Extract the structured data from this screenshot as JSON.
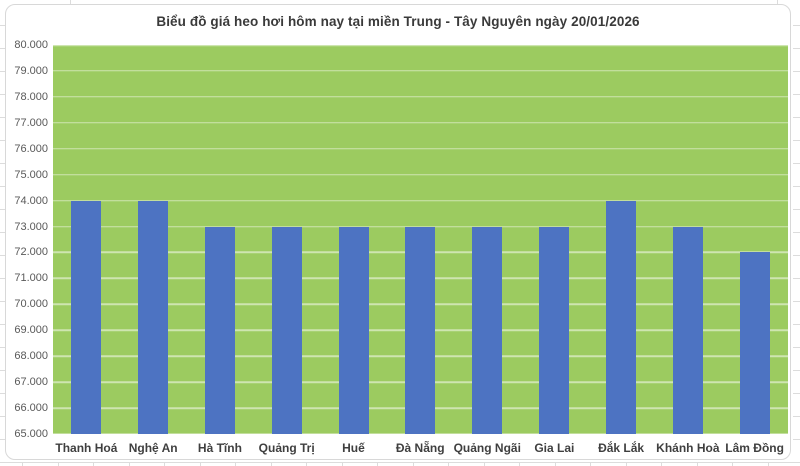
{
  "chart": {
    "title": "Biểu đồ giá heo hơi hôm nay tại miền Trung - Tây Nguyên ngày 20/01/2026",
    "colors": {
      "bar": "#4D73C2",
      "plot_background": "#9CCB60",
      "gridline": "rgba(255,255,255,0.5)",
      "title_text": "#3A3A3A",
      "axis_text": "#595959",
      "category_text": "#3F3F3F",
      "frame_border": "#D8D8D8"
    }
  },
  "chart_data": {
    "type": "bar",
    "title": "Biểu đồ giá heo hơi hôm nay tại miền Trung - Tây Nguyên ngày 20/01/2026",
    "categories": [
      "Thanh Hoá",
      "Nghệ An",
      "Hà Tĩnh",
      "Quảng Trị",
      "Huế",
      "Đà Nẵng",
      "Quảng Ngãi",
      "Gia Lai",
      "Đắk Lắk",
      "Khánh Hoà",
      "Lâm Đồng"
    ],
    "values": [
      74000,
      74000,
      73000,
      73000,
      73000,
      73000,
      73000,
      73000,
      74000,
      73000,
      72000
    ],
    "xlabel": "",
    "ylabel": "",
    "ylim": [
      65000,
      80000
    ],
    "ytick_step": 1000,
    "ytick_labels": [
      "80.000",
      "79.000",
      "78.000",
      "77.000",
      "76.000",
      "75.000",
      "74.000",
      "73.000",
      "72.000",
      "71.000",
      "70.000",
      "69.000",
      "68.000",
      "67.000",
      "66.000",
      "65.000"
    ],
    "grid": true,
    "legend_position": "none"
  }
}
